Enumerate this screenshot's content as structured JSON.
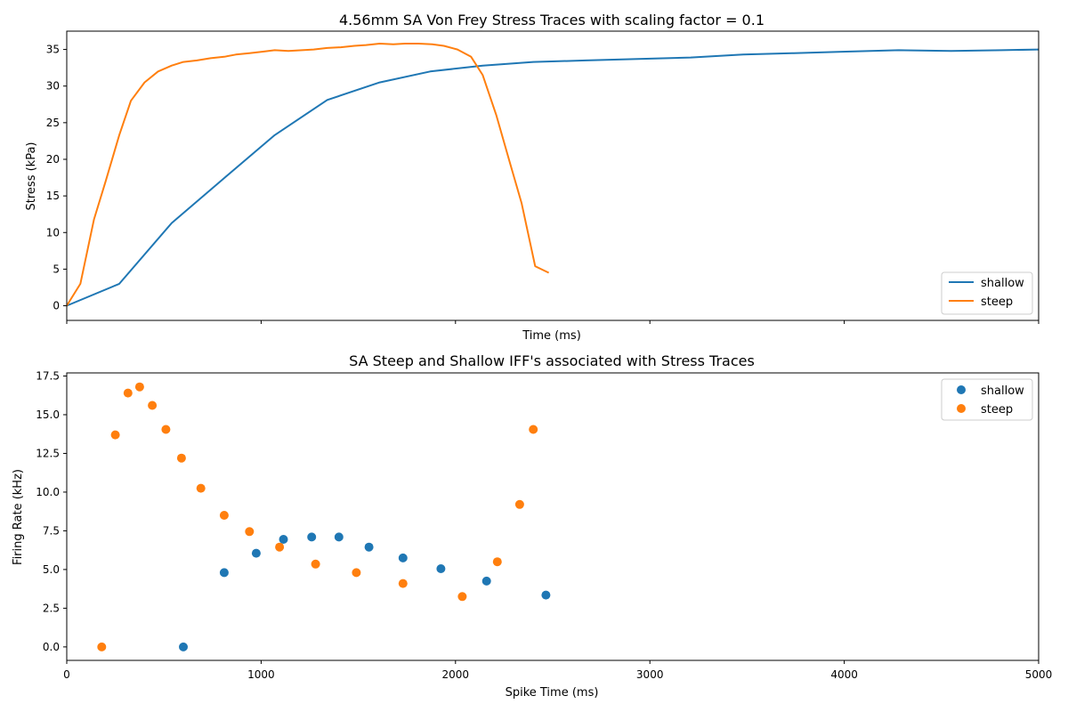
{
  "chart_data": [
    {
      "type": "line",
      "title": "4.56mm SA Von Frey Stress Traces with scaling factor = 0.1",
      "xlabel": "Time (ms)",
      "ylabel": "Stress (kPa)",
      "xlim": [
        0,
        5000
      ],
      "ylim": [
        -2,
        37.5
      ],
      "x_ticks": [
        0,
        1000,
        2000,
        3000,
        4000,
        5000
      ],
      "x_tick_labels_visible": false,
      "y_ticks": [
        0,
        5,
        10,
        15,
        20,
        25,
        30,
        35
      ],
      "y_tick_labels": [
        "0",
        "5",
        "10",
        "15",
        "20",
        "25",
        "30",
        "35"
      ],
      "grid": false,
      "legend_position": "lower-right",
      "series": [
        {
          "name": "shallow",
          "color": "#1f77b4",
          "x": [
            0,
            270,
            540,
            800,
            1070,
            1340,
            1610,
            1870,
            2140,
            2400,
            2670,
            2940,
            3210,
            3480,
            3740,
            4010,
            4280,
            4550,
            4810,
            5000
          ],
          "y": [
            0,
            3,
            11.3,
            17.2,
            23.3,
            28.1,
            30.5,
            32.0,
            32.8,
            33.3,
            33.5,
            33.7,
            33.9,
            34.3,
            34.5,
            34.7,
            34.9,
            34.8,
            34.9,
            35.0
          ]
        },
        {
          "name": "steep",
          "color": "#ff7f0e",
          "x": [
            0,
            70,
            140,
            200,
            270,
            330,
            400,
            470,
            540,
            600,
            670,
            740,
            810,
            870,
            940,
            1010,
            1070,
            1140,
            1210,
            1270,
            1340,
            1410,
            1480,
            1540,
            1610,
            1680,
            1740,
            1810,
            1880,
            1940,
            2010,
            2080,
            2140,
            2210,
            2280,
            2340,
            2410,
            2480
          ],
          "y": [
            0,
            3,
            11.8,
            17.0,
            23.3,
            28.0,
            30.5,
            32.0,
            32.8,
            33.3,
            33.5,
            33.8,
            34.0,
            34.3,
            34.5,
            34.7,
            34.9,
            34.8,
            34.9,
            35.0,
            35.2,
            35.3,
            35.5,
            35.6,
            35.8,
            35.7,
            35.8,
            35.8,
            35.7,
            35.5,
            35.0,
            34.0,
            31.5,
            26.0,
            19.5,
            14.0,
            5.4,
            4.5
          ]
        }
      ]
    },
    {
      "type": "scatter",
      "title": "SA Steep and Shallow IFF's associated with Stress Traces",
      "xlabel": "Spike Time (ms)",
      "ylabel": "Firing Rate (kHz)",
      "xlim": [
        0,
        5000
      ],
      "ylim": [
        -0.87,
        17.7
      ],
      "x_ticks": [
        0,
        1000,
        2000,
        3000,
        4000,
        5000
      ],
      "x_tick_labels": [
        "0",
        "1000",
        "2000",
        "3000",
        "4000",
        "5000"
      ],
      "y_ticks": [
        0,
        2.5,
        5,
        7.5,
        10,
        12.5,
        15,
        17.5
      ],
      "y_tick_labels": [
        "0.0",
        "2.5",
        "5.0",
        "7.5",
        "10.0",
        "12.5",
        "15.0",
        "17.5"
      ],
      "grid": false,
      "legend_position": "upper-right",
      "series": [
        {
          "name": "shallow",
          "color": "#1f77b4",
          "x": [
            600,
            810,
            975,
            1115,
            1260,
            1400,
            1555,
            1730,
            1925,
            2160,
            2465
          ],
          "y": [
            0.0,
            4.8,
            6.05,
            6.95,
            7.1,
            7.1,
            6.45,
            5.75,
            5.05,
            4.25,
            3.35
          ]
        },
        {
          "name": "steep",
          "color": "#ff7f0e",
          "x": [
            180,
            250,
            315,
            375,
            440,
            510,
            590,
            690,
            810,
            940,
            1095,
            1280,
            1490,
            1730,
            2035,
            2215,
            2330,
            2400
          ],
          "y": [
            0.0,
            13.7,
            16.4,
            16.8,
            15.6,
            14.05,
            12.2,
            10.25,
            8.5,
            7.45,
            6.45,
            5.35,
            4.8,
            4.1,
            3.25,
            5.5,
            9.2,
            14.05
          ]
        }
      ]
    }
  ]
}
